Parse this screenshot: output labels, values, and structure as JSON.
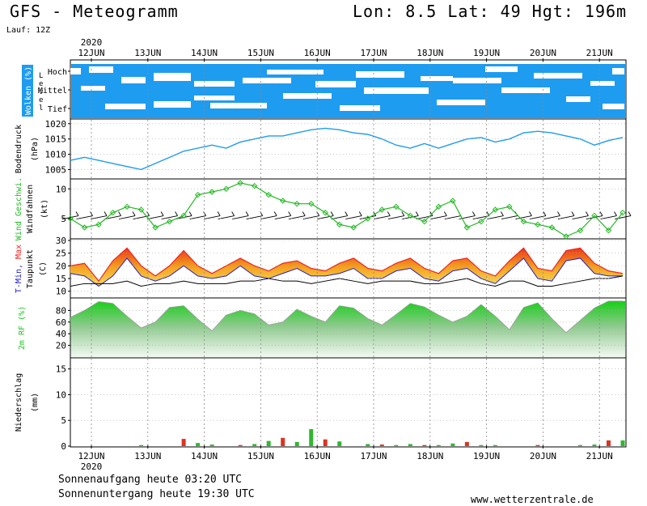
{
  "header": {
    "title": "GFS - Meteogramm",
    "coords": "Lon: 8.5 Lat: 49 Hgt: 196m",
    "run": "Lauf: 12Z"
  },
  "footer": {
    "sunrise": "Sonnenaufgang heute 03:20 UTC",
    "sunset": "Sonnenuntergang heute 19:30 UTC",
    "site": "www.wetterzentrale.de"
  },
  "colors": {
    "cloud": "#1e9cf0",
    "pressure": "#1e9cf0",
    "wind": "#22b822",
    "tmin": "#2222cc",
    "tmax": "#ee2222",
    "dew": "#000000",
    "rh": "#22c822",
    "precip_green": "#2fb82f",
    "precip_red": "#dd3322"
  },
  "chart_data": [
    {
      "type": "heatmap",
      "title": "",
      "ylabel": "Wolken (%)",
      "ylabel2": "Level",
      "levels": [
        "Hoch",
        "Mittel",
        "Tief"
      ],
      "x_days": [
        "12JUN",
        "13JUN",
        "14JUN",
        "15JUN",
        "16JUN",
        "17JUN",
        "18JUN",
        "19JUN",
        "20JUN",
        "21JUN"
      ],
      "year": "2020"
    },
    {
      "type": "line",
      "ylabel": "Bodendruck",
      "ylabel2": "(hPa)",
      "ylim": [
        1003,
        1021
      ],
      "yticks": [
        1005,
        1010,
        1015,
        1020
      ],
      "x": [
        0,
        1,
        2,
        3,
        4,
        5,
        6,
        7,
        8,
        9,
        10,
        11,
        12,
        13,
        14,
        15,
        16,
        17,
        18,
        19,
        20,
        21,
        22,
        23,
        24,
        25,
        26,
        27,
        28,
        29,
        30,
        31,
        32,
        33,
        34,
        35,
        36,
        37,
        38,
        39
      ],
      "values": [
        1008,
        1009,
        1008,
        1007,
        1006,
        1005,
        1007,
        1009,
        1011,
        1012,
        1013,
        1012,
        1014,
        1015,
        1016,
        1016,
        1017,
        1018,
        1018.5,
        1018,
        1017,
        1016.5,
        1015,
        1013,
        1012,
        1013.5,
        1012,
        1013.5,
        1015,
        1015.5,
        1014,
        1015,
        1017,
        1017.5,
        1017,
        1016,
        1015,
        1013,
        1014.5,
        1015.5
      ]
    },
    {
      "type": "line",
      "ylabel": "Wind Geschwi.",
      "ylabel2": "Windfahnen",
      "ylabel3": "(kt)",
      "ylim": [
        2,
        11
      ],
      "yticks": [
        5,
        10
      ],
      "series": [
        {
          "name": "Wind Geschwi.",
          "x": [
            0,
            1,
            2,
            3,
            4,
            5,
            6,
            7,
            8,
            9,
            10,
            11,
            12,
            13,
            14,
            15,
            16,
            17,
            18,
            19,
            20,
            21,
            22,
            23,
            24,
            25,
            26,
            27,
            28,
            29,
            30,
            31,
            32,
            33,
            34,
            35,
            36,
            37,
            38,
            39
          ],
          "values": [
            5,
            3.5,
            4,
            6,
            7,
            6.5,
            3.5,
            4.5,
            5.5,
            9,
            9.5,
            10,
            11,
            10.5,
            9,
            8,
            7.5,
            7.5,
            6,
            4,
            3.5,
            5,
            6.5,
            7,
            5.5,
            4.5,
            7,
            8,
            3.5,
            4.5,
            6.5,
            7,
            4.5,
            4,
            3.5,
            2,
            3,
            5.5,
            3,
            6
          ]
        }
      ]
    },
    {
      "type": "area",
      "ylabel": "T-Min, Max",
      "ylabel2": "Taupunkt",
      "ylabel3": "(C)",
      "ylim": [
        8,
        30
      ],
      "yticks": [
        10,
        15,
        20,
        25,
        30
      ],
      "series": [
        {
          "name": "T-Max",
          "x": [
            0,
            1,
            2,
            3,
            4,
            5,
            6,
            7,
            8,
            9,
            10,
            11,
            12,
            13,
            14,
            15,
            16,
            17,
            18,
            19,
            20,
            21,
            22,
            23,
            24,
            25,
            26,
            27,
            28,
            29,
            30,
            31,
            32,
            33,
            34,
            35,
            36,
            37,
            38,
            39
          ],
          "values": [
            20,
            21,
            14,
            22,
            27,
            20,
            16,
            20,
            26,
            20,
            17,
            20,
            23,
            20,
            18,
            21,
            22,
            19,
            18,
            21,
            23,
            19,
            18,
            21,
            23,
            19,
            17,
            22,
            23,
            18,
            16,
            22,
            27,
            19,
            18,
            26,
            27,
            21,
            18,
            17
          ]
        },
        {
          "name": "T-Min",
          "x": [
            0,
            1,
            2,
            3,
            4,
            5,
            6,
            7,
            8,
            9,
            10,
            11,
            12,
            13,
            14,
            15,
            16,
            17,
            18,
            19,
            20,
            21,
            22,
            23,
            24,
            25,
            26,
            27,
            28,
            29,
            30,
            31,
            32,
            33,
            34,
            35,
            36,
            37,
            38,
            39
          ],
          "values": [
            17,
            16,
            12,
            16,
            23,
            16,
            14,
            16,
            20,
            16,
            15,
            16,
            20,
            16,
            15,
            17,
            19,
            16,
            16,
            17,
            19,
            15,
            15,
            18,
            19,
            15,
            14,
            18,
            19,
            15,
            13,
            18,
            23,
            15,
            14,
            22,
            23,
            17,
            16,
            16
          ]
        },
        {
          "name": "Taupunkt",
          "x": [
            0,
            1,
            2,
            3,
            4,
            5,
            6,
            7,
            8,
            9,
            10,
            11,
            12,
            13,
            14,
            15,
            16,
            17,
            18,
            19,
            20,
            21,
            22,
            23,
            24,
            25,
            26,
            27,
            28,
            29,
            30,
            31,
            32,
            33,
            34,
            35,
            36,
            37,
            38,
            39
          ],
          "values": [
            12,
            13,
            13,
            13,
            14,
            12,
            13,
            13,
            14,
            13,
            13,
            13,
            14,
            14,
            15,
            14,
            14,
            13,
            14,
            15,
            14,
            13,
            14,
            14,
            14,
            13,
            13,
            14,
            15,
            13,
            12,
            14,
            14,
            12,
            12,
            13,
            14,
            15,
            15,
            16
          ]
        }
      ]
    },
    {
      "type": "area",
      "ylabel": "2m RF (%)",
      "ylim": [
        0,
        100
      ],
      "yticks": [
        20,
        40,
        60,
        80
      ],
      "x": [
        0,
        1,
        2,
        3,
        4,
        5,
        6,
        7,
        8,
        9,
        10,
        11,
        12,
        13,
        14,
        15,
        16,
        17,
        18,
        19,
        20,
        21,
        22,
        23,
        24,
        25,
        26,
        27,
        28,
        29,
        30,
        31,
        32,
        33,
        34,
        35,
        36,
        37,
        38,
        39
      ],
      "values": [
        68,
        80,
        95,
        92,
        70,
        50,
        60,
        85,
        88,
        65,
        45,
        72,
        80,
        74,
        55,
        60,
        82,
        70,
        60,
        88,
        84,
        66,
        55,
        73,
        92,
        86,
        72,
        60,
        70,
        90,
        70,
        47,
        85,
        93,
        66,
        42,
        63,
        84,
        96,
        96
      ]
    },
    {
      "type": "bar",
      "ylabel": "Niederschlag",
      "ylabel2": "(mm)",
      "ylim": [
        0,
        17
      ],
      "yticks": [
        0,
        5,
        10,
        15
      ],
      "series": [
        {
          "name": "Niederschlag",
          "x": [
            5,
            8,
            9,
            10,
            12,
            13,
            14,
            15,
            16,
            17,
            18,
            19,
            21,
            22,
            23,
            24,
            25,
            26,
            27,
            28,
            29,
            30,
            33,
            36,
            37,
            38,
            39
          ],
          "values": [
            0.2,
            1.4,
            0.6,
            0.3,
            0.2,
            0.4,
            1.0,
            1.6,
            0.8,
            3.3,
            1.3,
            0.9,
            0.4,
            0.3,
            0.2,
            0.4,
            0.2,
            0.2,
            0.5,
            0.8,
            0.2,
            0.2,
            0.2,
            0.2,
            0.3,
            1.1,
            1.1
          ]
        }
      ],
      "x_days": [
        "12JUN",
        "13JUN",
        "14JUN",
        "15JUN",
        "16JUN",
        "17JUN",
        "18JUN",
        "19JUN",
        "20JUN",
        "21JUN"
      ],
      "year": "2020"
    }
  ]
}
